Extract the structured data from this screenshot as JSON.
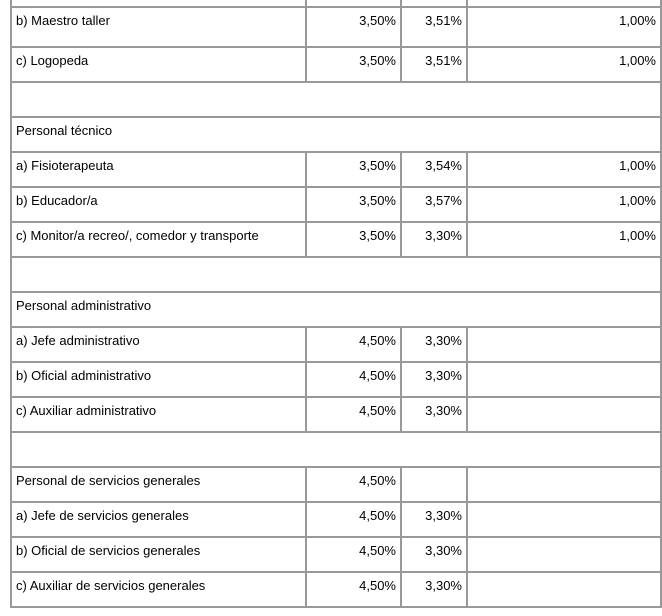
{
  "table": {
    "border_color": "#999999",
    "text_color": "#000000",
    "rows": [
      {
        "type": "partial",
        "label": "",
        "v1": "",
        "v2": "",
        "v3": ""
      },
      {
        "type": "data",
        "label": "b) Maestro taller",
        "v1": "3,50%",
        "v2": "3,51%",
        "v3": "1,00%"
      },
      {
        "type": "data",
        "label": "c) Logopeda",
        "v1": "3,50%",
        "v2": "3,51%",
        "v3": "1,00%"
      },
      {
        "type": "spacer",
        "label": "",
        "v1": "",
        "v2": "",
        "v3": ""
      },
      {
        "type": "section",
        "label": "Personal técnico",
        "v1": "",
        "v2": "",
        "v3": ""
      },
      {
        "type": "data",
        "label": "a) Fisioterapeuta",
        "v1": "3,50%",
        "v2": "3,54%",
        "v3": "1,00%"
      },
      {
        "type": "data",
        "label": "b) Educador/a",
        "v1": "3,50%",
        "v2": "3,57%",
        "v3": "1,00%"
      },
      {
        "type": "data",
        "label": "c) Monitor/a recreo/, comedor y transporte",
        "v1": "3,50%",
        "v2": "3,30%",
        "v3": "1,00%"
      },
      {
        "type": "spacer",
        "label": "",
        "v1": "",
        "v2": "",
        "v3": ""
      },
      {
        "type": "section",
        "label": "Personal administrativo",
        "v1": "",
        "v2": "",
        "v3": ""
      },
      {
        "type": "data",
        "label": "a) Jefe administrativo",
        "v1": "4,50%",
        "v2": "3,30%",
        "v3": ""
      },
      {
        "type": "data",
        "label": "b) Oficial administrativo",
        "v1": "4,50%",
        "v2": "3,30%",
        "v3": ""
      },
      {
        "type": "data",
        "label": "c) Auxiliar administrativo",
        "v1": "4,50%",
        "v2": "3,30%",
        "v3": ""
      },
      {
        "type": "spacer",
        "label": "",
        "v1": "",
        "v2": "",
        "v3": ""
      },
      {
        "type": "data",
        "label": "Personal de servicios generales",
        "v1": "4,50%",
        "v2": "",
        "v3": ""
      },
      {
        "type": "data",
        "label": "a) Jefe de servicios generales",
        "v1": "4,50%",
        "v2": "3,30%",
        "v3": ""
      },
      {
        "type": "data",
        "label": "b) Oficial de servicios generales",
        "v1": "4,50%",
        "v2": "3,30%",
        "v3": ""
      },
      {
        "type": "data",
        "label": "c) Auxiliar de servicios generales",
        "v1": "4,50%",
        "v2": "3,30%",
        "v3": ""
      }
    ]
  }
}
